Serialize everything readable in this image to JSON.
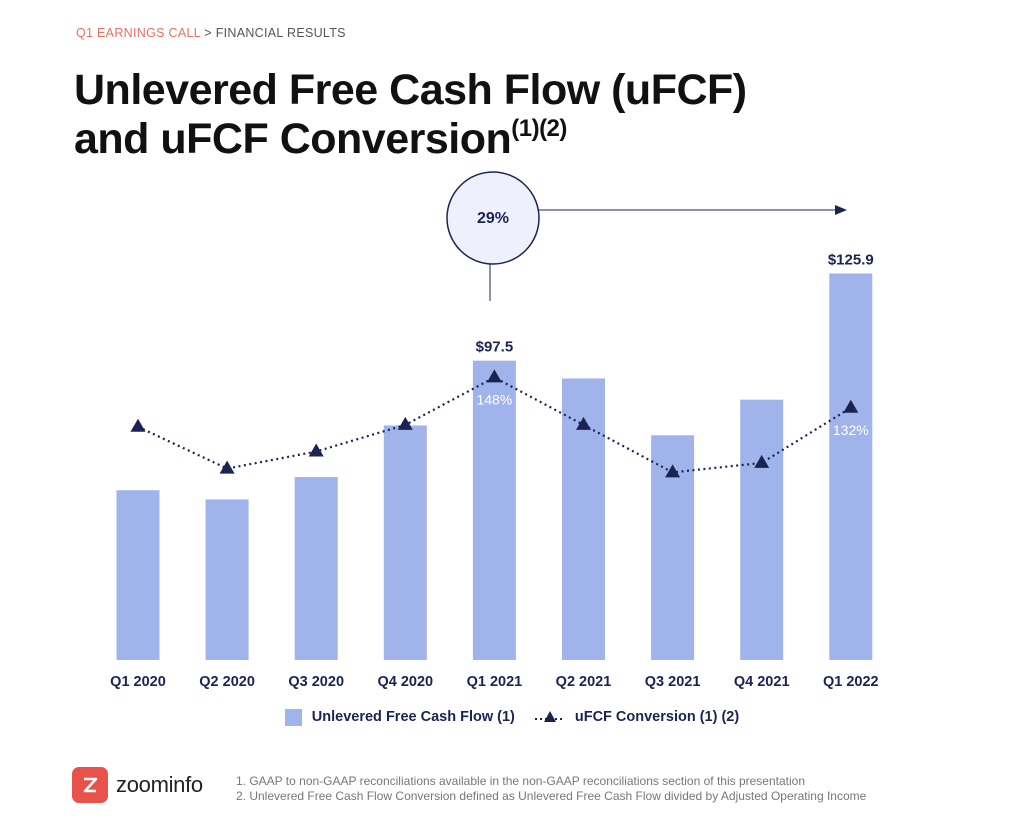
{
  "breadcrumb": {
    "section": "Q1 EARNINGS CALL",
    "separator": ">",
    "page": "FINANCIAL RESULTS"
  },
  "title": {
    "line1": "Unlevered Free Cash Flow (uFCF)",
    "line2": "and uFCF Conversion",
    "superscript": "(1)(2)"
  },
  "callout": {
    "text": "29%"
  },
  "legend": {
    "bars": "Unlevered Free Cash Flow (1)",
    "line": "uFCF Conversion (1) (2)"
  },
  "footnotes": [
    "1.  GAAP to non-GAAP reconciliations available in the non-GAAP reconciliations section of this presentation",
    "2.  Unlevered Free Cash Flow Conversion defined as Unlevered Free Cash Flow divided by Adjusted Operating Income"
  ],
  "logo": {
    "text": "zoominfo",
    "icon": "zoominfo-z-icon"
  },
  "colors": {
    "bar": "#a0b4eb",
    "line": "#1b2353",
    "accent": "#e8705f",
    "callout_fill": "#eef1fb",
    "logo": "#e8524a"
  },
  "chart_data": {
    "type": "bar",
    "categories": [
      "Q1 2020",
      "Q2 2020",
      "Q3 2020",
      "Q4 2020",
      "Q1 2021",
      "Q2 2021",
      "Q3 2021",
      "Q4 2021",
      "Q1 2022"
    ],
    "series": [
      {
        "name": "Unlevered Free Cash Flow (1)",
        "type": "bar",
        "values": [
          55.3,
          52.3,
          59.6,
          76.4,
          97.5,
          91.7,
          73.2,
          84.8,
          125.9
        ],
        "data_labels": {
          "4": "$97.5",
          "8": "$125.9"
        }
      },
      {
        "name": "uFCF Conversion (1) (2)",
        "type": "line",
        "marker": "triangle",
        "line_style": "dotted",
        "values": [
          122,
          100,
          109,
          123,
          148,
          123,
          98,
          103,
          132
        ],
        "data_labels": {
          "4": "148%",
          "8": "132%"
        }
      }
    ],
    "annotation": {
      "text": "29%",
      "from": "Q1 2021",
      "to": "Q1 2022"
    }
  }
}
